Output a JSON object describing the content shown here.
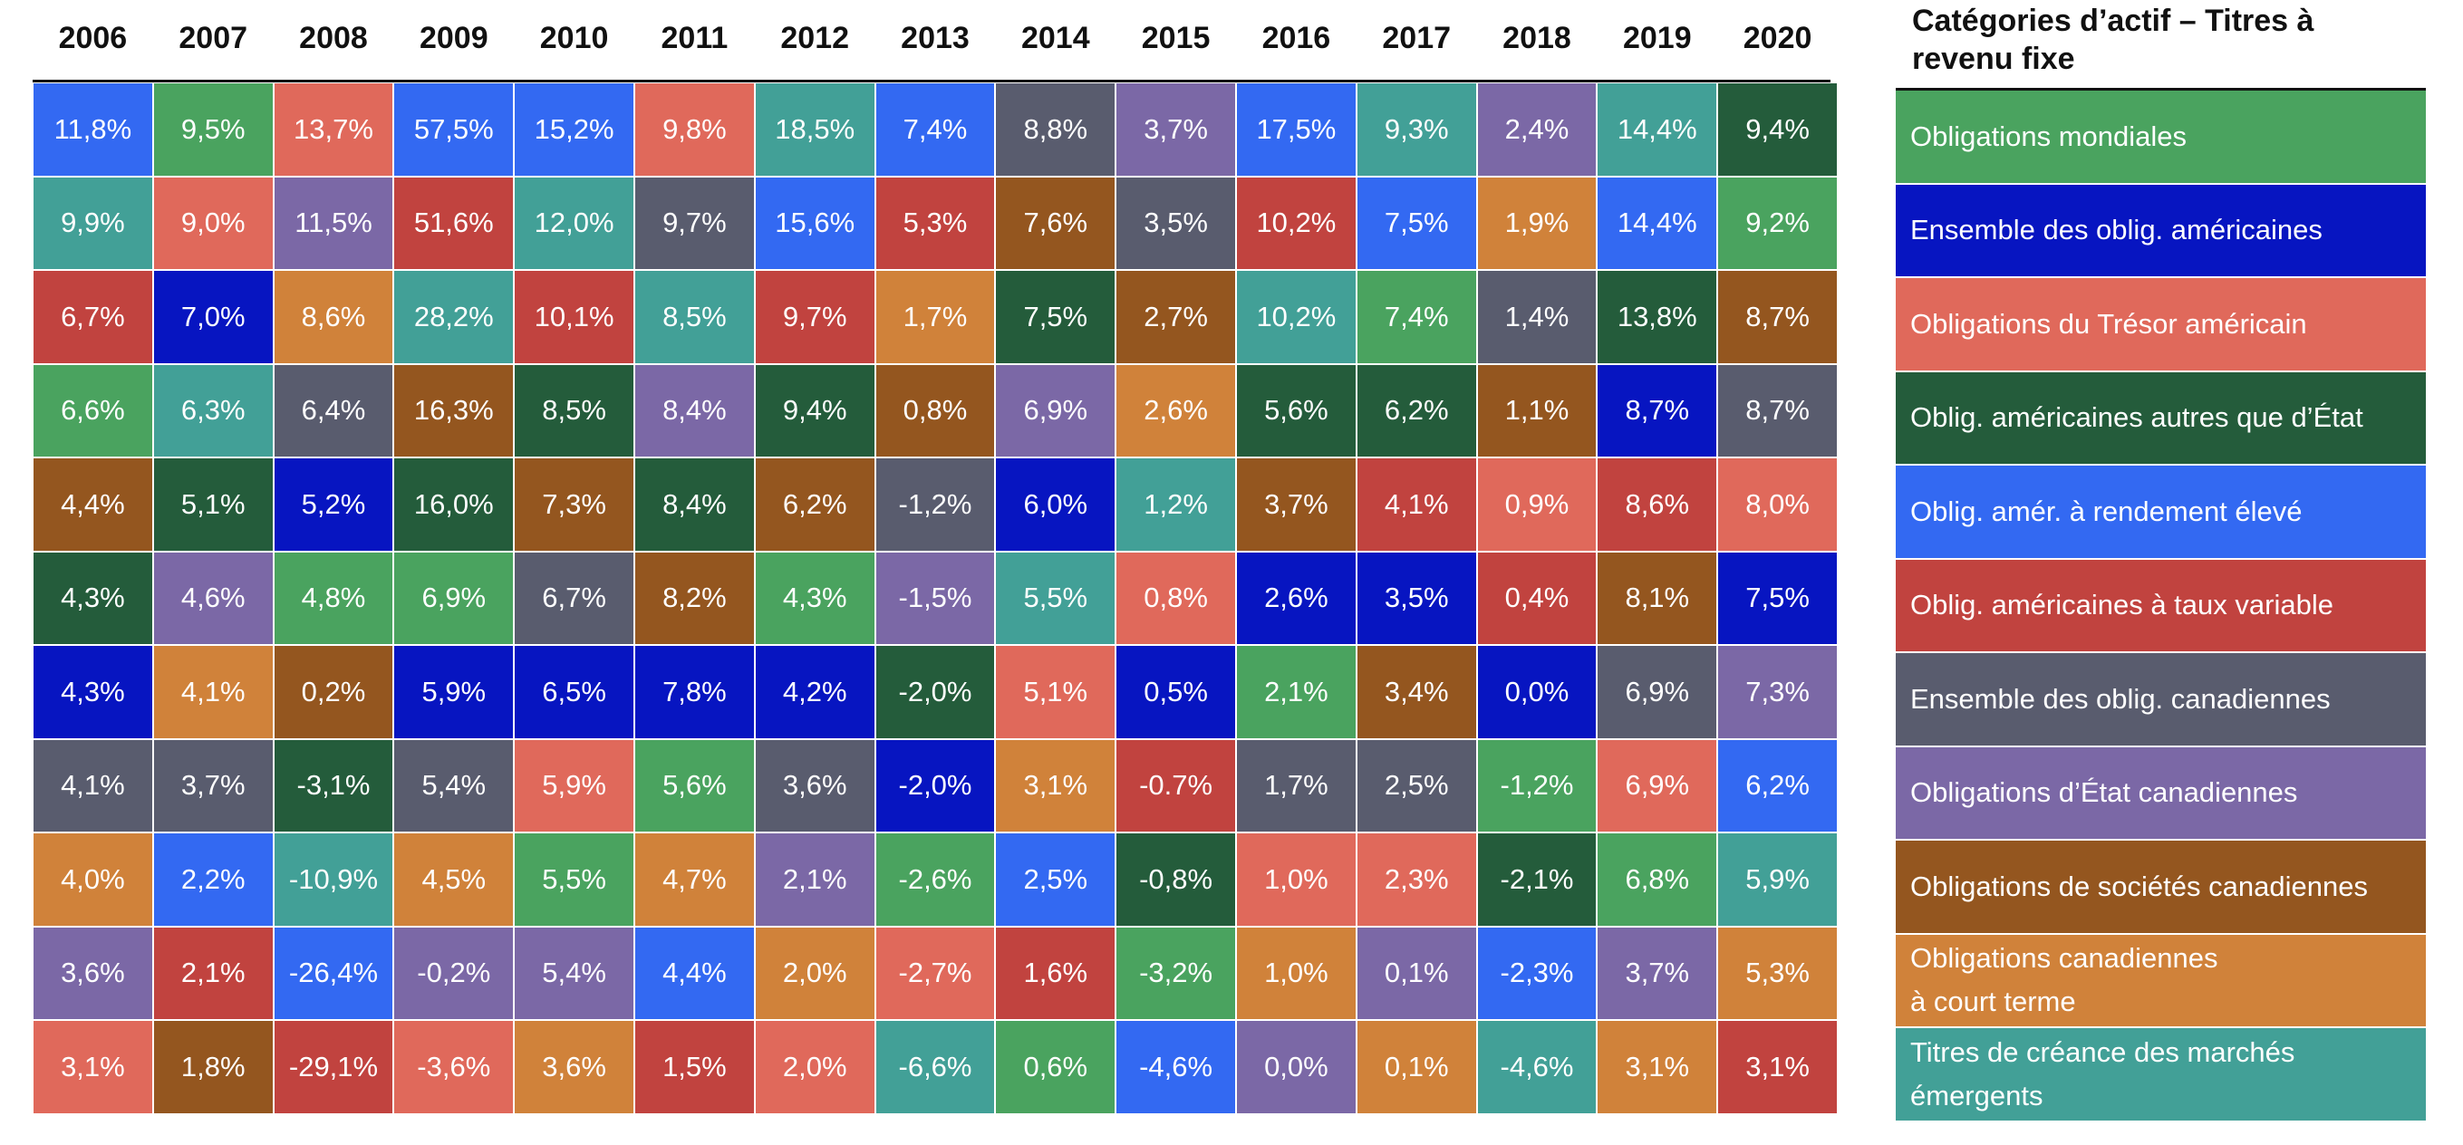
{
  "chart_data": {
    "type": "table",
    "title": "Catégories d’actif – Titres à revenu fixe",
    "years": [
      "2006",
      "2007",
      "2008",
      "2009",
      "2010",
      "2011",
      "2012",
      "2013",
      "2014",
      "2015",
      "2016",
      "2017",
      "2018",
      "2019",
      "2020"
    ],
    "categories": [
      {
        "key": "OM",
        "name": "Obligations mondiales",
        "color": "#4aa35f"
      },
      {
        "key": "EA",
        "name": "Ensemble des oblig. américaines",
        "color": "#0715c1"
      },
      {
        "key": "TR",
        "name": "Obligations du Trésor américain",
        "color": "#e0695b"
      },
      {
        "key": "NE",
        "name": "Oblig. américaines autres que d’État",
        "color": "#245c3b"
      },
      {
        "key": "RE",
        "name": "Oblig. amér. à rendement élevé",
        "color": "#3369f2"
      },
      {
        "key": "TV",
        "name": "Oblig. américaines à taux variable",
        "color": "#c1433f"
      },
      {
        "key": "EC",
        "name": "Ensemble des oblig. canadiennes",
        "color": "#595c6e"
      },
      {
        "key": "EtC",
        "name": "Obligations d’État canadiennes",
        "color": "#7b68a6"
      },
      {
        "key": "SC",
        "name": "Obligations de sociétés canadiennes",
        "color": "#94561f"
      },
      {
        "key": "CT",
        "name": "Obligations canadiennes\nà court terme",
        "color": "#d0823a"
      },
      {
        "key": "EM",
        "name": "Titres de créance des marchés\némergents",
        "color": "#42a097"
      }
    ],
    "columns": [
      {
        "year": "2006",
        "cells": [
          [
            "RE",
            "11,8%"
          ],
          [
            "EM",
            "9,9%"
          ],
          [
            "TV",
            "6,7%"
          ],
          [
            "OM",
            "6,6%"
          ],
          [
            "SC",
            "4,4%"
          ],
          [
            "NE",
            "4,3%"
          ],
          [
            "EA",
            "4,3%"
          ],
          [
            "EC",
            "4,1%"
          ],
          [
            "CT",
            "4,0%"
          ],
          [
            "EtC",
            "3,6%"
          ],
          [
            "TR",
            "3,1%"
          ]
        ]
      },
      {
        "year": "2007",
        "cells": [
          [
            "OM",
            "9,5%"
          ],
          [
            "TR",
            "9,0%"
          ],
          [
            "EA",
            "7,0%"
          ],
          [
            "EM",
            "6,3%"
          ],
          [
            "NE",
            "5,1%"
          ],
          [
            "EtC",
            "4,6%"
          ],
          [
            "CT",
            "4,1%"
          ],
          [
            "EC",
            "3,7%"
          ],
          [
            "RE",
            "2,2%"
          ],
          [
            "TV",
            "2,1%"
          ],
          [
            "SC",
            "1,8%"
          ]
        ]
      },
      {
        "year": "2008",
        "cells": [
          [
            "TR",
            "13,7%"
          ],
          [
            "EtC",
            "11,5%"
          ],
          [
            "CT",
            "8,6%"
          ],
          [
            "EC",
            "6,4%"
          ],
          [
            "EA",
            "5,2%"
          ],
          [
            "OM",
            "4,8%"
          ],
          [
            "SC",
            "0,2%"
          ],
          [
            "NE",
            "-3,1%"
          ],
          [
            "EM",
            "-10,9%"
          ],
          [
            "RE",
            "-26,4%"
          ],
          [
            "TV",
            "-29,1%"
          ]
        ]
      },
      {
        "year": "2009",
        "cells": [
          [
            "RE",
            "57,5%"
          ],
          [
            "TV",
            "51,6%"
          ],
          [
            "EM",
            "28,2%"
          ],
          [
            "SC",
            "16,3%"
          ],
          [
            "NE",
            "16,0%"
          ],
          [
            "OM",
            "6,9%"
          ],
          [
            "EA",
            "5,9%"
          ],
          [
            "EC",
            "5,4%"
          ],
          [
            "CT",
            "4,5%"
          ],
          [
            "EtC",
            "-0,2%"
          ],
          [
            "TR",
            "-3,6%"
          ]
        ]
      },
      {
        "year": "2010",
        "cells": [
          [
            "RE",
            "15,2%"
          ],
          [
            "EM",
            "12,0%"
          ],
          [
            "TV",
            "10,1%"
          ],
          [
            "NE",
            "8,5%"
          ],
          [
            "SC",
            "7,3%"
          ],
          [
            "EC",
            "6,7%"
          ],
          [
            "EA",
            "6,5%"
          ],
          [
            "TR",
            "5,9%"
          ],
          [
            "OM",
            "5,5%"
          ],
          [
            "EtC",
            "5,4%"
          ],
          [
            "CT",
            "3,6%"
          ]
        ]
      },
      {
        "year": "2011",
        "cells": [
          [
            "TR",
            "9,8%"
          ],
          [
            "EC",
            "9,7%"
          ],
          [
            "EM",
            "8,5%"
          ],
          [
            "EtC",
            "8,4%"
          ],
          [
            "NE",
            "8,4%"
          ],
          [
            "SC",
            "8,2%"
          ],
          [
            "EA",
            "7,8%"
          ],
          [
            "OM",
            "5,6%"
          ],
          [
            "CT",
            "4,7%"
          ],
          [
            "RE",
            "4,4%"
          ],
          [
            "TV",
            "1,5%"
          ]
        ]
      },
      {
        "year": "2012",
        "cells": [
          [
            "EM",
            "18,5%"
          ],
          [
            "RE",
            "15,6%"
          ],
          [
            "TV",
            "9,7%"
          ],
          [
            "NE",
            "9,4%"
          ],
          [
            "SC",
            "6,2%"
          ],
          [
            "OM",
            "4,3%"
          ],
          [
            "EA",
            "4,2%"
          ],
          [
            "EC",
            "3,6%"
          ],
          [
            "EtC",
            "2,1%"
          ],
          [
            "CT",
            "2,0%"
          ],
          [
            "TR",
            "2,0%"
          ]
        ]
      },
      {
        "year": "2013",
        "cells": [
          [
            "RE",
            "7,4%"
          ],
          [
            "TV",
            "5,3%"
          ],
          [
            "CT",
            "1,7%"
          ],
          [
            "SC",
            "0,8%"
          ],
          [
            "EC",
            "-1,2%"
          ],
          [
            "EtC",
            "-1,5%"
          ],
          [
            "NE",
            "-2,0%"
          ],
          [
            "EA",
            "-2,0%"
          ],
          [
            "OM",
            "-2,6%"
          ],
          [
            "TR",
            "-2,7%"
          ],
          [
            "EM",
            "-6,6%"
          ]
        ]
      },
      {
        "year": "2014",
        "cells": [
          [
            "EC",
            "8,8%"
          ],
          [
            "SC",
            "7,6%"
          ],
          [
            "NE",
            "7,5%"
          ],
          [
            "EtC",
            "6,9%"
          ],
          [
            "EA",
            "6,0%"
          ],
          [
            "EM",
            "5,5%"
          ],
          [
            "TR",
            "5,1%"
          ],
          [
            "CT",
            "3,1%"
          ],
          [
            "RE",
            "2,5%"
          ],
          [
            "TV",
            "1,6%"
          ],
          [
            "OM",
            "0,6%"
          ]
        ]
      },
      {
        "year": "2015",
        "cells": [
          [
            "EtC",
            "3,7%"
          ],
          [
            "EC",
            "3,5%"
          ],
          [
            "SC",
            "2,7%"
          ],
          [
            "CT",
            "2,6%"
          ],
          [
            "EM",
            "1,2%"
          ],
          [
            "TR",
            "0,8%"
          ],
          [
            "EA",
            "0,5%"
          ],
          [
            "TV",
            "-0.7%"
          ],
          [
            "NE",
            "-0,8%"
          ],
          [
            "OM",
            "-3,2%"
          ],
          [
            "RE",
            "-4,6%"
          ]
        ]
      },
      {
        "year": "2016",
        "cells": [
          [
            "RE",
            "17,5%"
          ],
          [
            "TV",
            "10,2%"
          ],
          [
            "EM",
            "10,2%"
          ],
          [
            "NE",
            "5,6%"
          ],
          [
            "SC",
            "3,7%"
          ],
          [
            "EA",
            "2,6%"
          ],
          [
            "OM",
            "2,1%"
          ],
          [
            "EC",
            "1,7%"
          ],
          [
            "TR",
            "1,0%"
          ],
          [
            "CT",
            "1,0%"
          ],
          [
            "EtC",
            "0,0%"
          ]
        ]
      },
      {
        "year": "2017",
        "cells": [
          [
            "EM",
            "9,3%"
          ],
          [
            "RE",
            "7,5%"
          ],
          [
            "OM",
            "7,4%"
          ],
          [
            "NE",
            "6,2%"
          ],
          [
            "TV",
            "4,1%"
          ],
          [
            "EA",
            "3,5%"
          ],
          [
            "SC",
            "3,4%"
          ],
          [
            "EC",
            "2,5%"
          ],
          [
            "TR",
            "2,3%"
          ],
          [
            "EtC",
            "0,1%"
          ],
          [
            "CT",
            "0,1%"
          ]
        ]
      },
      {
        "year": "2018",
        "cells": [
          [
            "EtC",
            "2,4%"
          ],
          [
            "CT",
            "1,9%"
          ],
          [
            "EC",
            "1,4%"
          ],
          [
            "SC",
            "1,1%"
          ],
          [
            "TR",
            "0,9%"
          ],
          [
            "TV",
            "0,4%"
          ],
          [
            "EA",
            "0,0%"
          ],
          [
            "OM",
            "-1,2%"
          ],
          [
            "NE",
            "-2,1%"
          ],
          [
            "RE",
            "-2,3%"
          ],
          [
            "EM",
            "-4,6%"
          ]
        ]
      },
      {
        "year": "2019",
        "cells": [
          [
            "EM",
            "14,4%"
          ],
          [
            "RE",
            "14,4%"
          ],
          [
            "NE",
            "13,8%"
          ],
          [
            "EA",
            "8,7%"
          ],
          [
            "TV",
            "8,6%"
          ],
          [
            "SC",
            "8,1%"
          ],
          [
            "EC",
            "6,9%"
          ],
          [
            "TR",
            "6,9%"
          ],
          [
            "OM",
            "6,8%"
          ],
          [
            "EtC",
            "3,7%"
          ],
          [
            "CT",
            "3,1%"
          ]
        ]
      },
      {
        "year": "2020",
        "cells": [
          [
            "NE",
            "9,4%"
          ],
          [
            "OM",
            "9,2%"
          ],
          [
            "SC",
            "8,7%"
          ],
          [
            "EC",
            "8,7%"
          ],
          [
            "TR",
            "8,0%"
          ],
          [
            "EA",
            "7,5%"
          ],
          [
            "EtC",
            "7,3%"
          ],
          [
            "RE",
            "6,2%"
          ],
          [
            "EM",
            "5,9%"
          ],
          [
            "CT",
            "5,3%"
          ],
          [
            "TV",
            "3,1%"
          ]
        ]
      }
    ]
  }
}
